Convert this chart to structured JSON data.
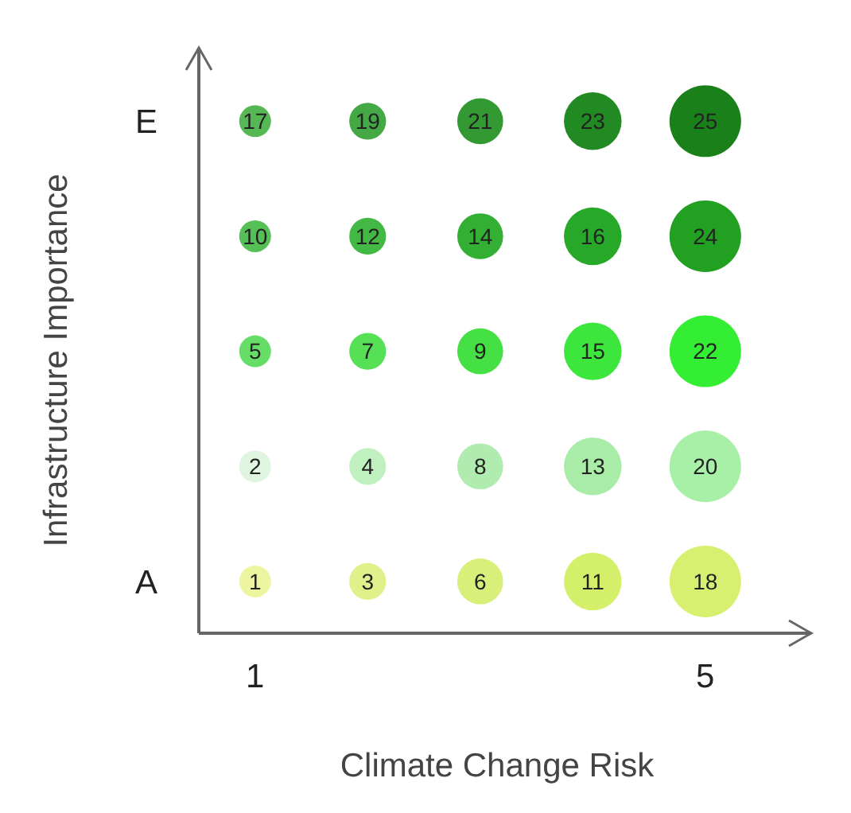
{
  "chart_data": {
    "type": "heatmap",
    "xlabel": "Climate Change Risk",
    "ylabel": "Infrastructure Importance",
    "categories": [
      "1",
      null,
      null,
      null,
      "5"
    ],
    "y_categories": [
      "E",
      null,
      null,
      null,
      "A"
    ],
    "cells": [
      [
        17,
        19,
        21,
        23,
        25
      ],
      [
        10,
        12,
        14,
        16,
        24
      ],
      [
        5,
        7,
        9,
        15,
        22
      ],
      [
        2,
        4,
        8,
        13,
        20
      ],
      [
        1,
        3,
        6,
        11,
        18
      ]
    ],
    "colors": [
      [
        "#55b855",
        "#44a844",
        "#339933",
        "#228a22",
        "#1a801a"
      ],
      [
        "#55c055",
        "#44b844",
        "#33b033",
        "#28a828",
        "#22a022"
      ],
      [
        "#66dd66",
        "#55e055",
        "#44e044",
        "#3ce63c",
        "#33ee33"
      ],
      [
        "#e0f5e0",
        "#c0f0c0",
        "#b0ecb0",
        "#a8eca8",
        "#a8f0a8"
      ],
      [
        "#eef5a0",
        "#e0f08a",
        "#d8f07a",
        "#d4f06a",
        "#d8f070"
      ]
    ],
    "data_labels": true
  }
}
